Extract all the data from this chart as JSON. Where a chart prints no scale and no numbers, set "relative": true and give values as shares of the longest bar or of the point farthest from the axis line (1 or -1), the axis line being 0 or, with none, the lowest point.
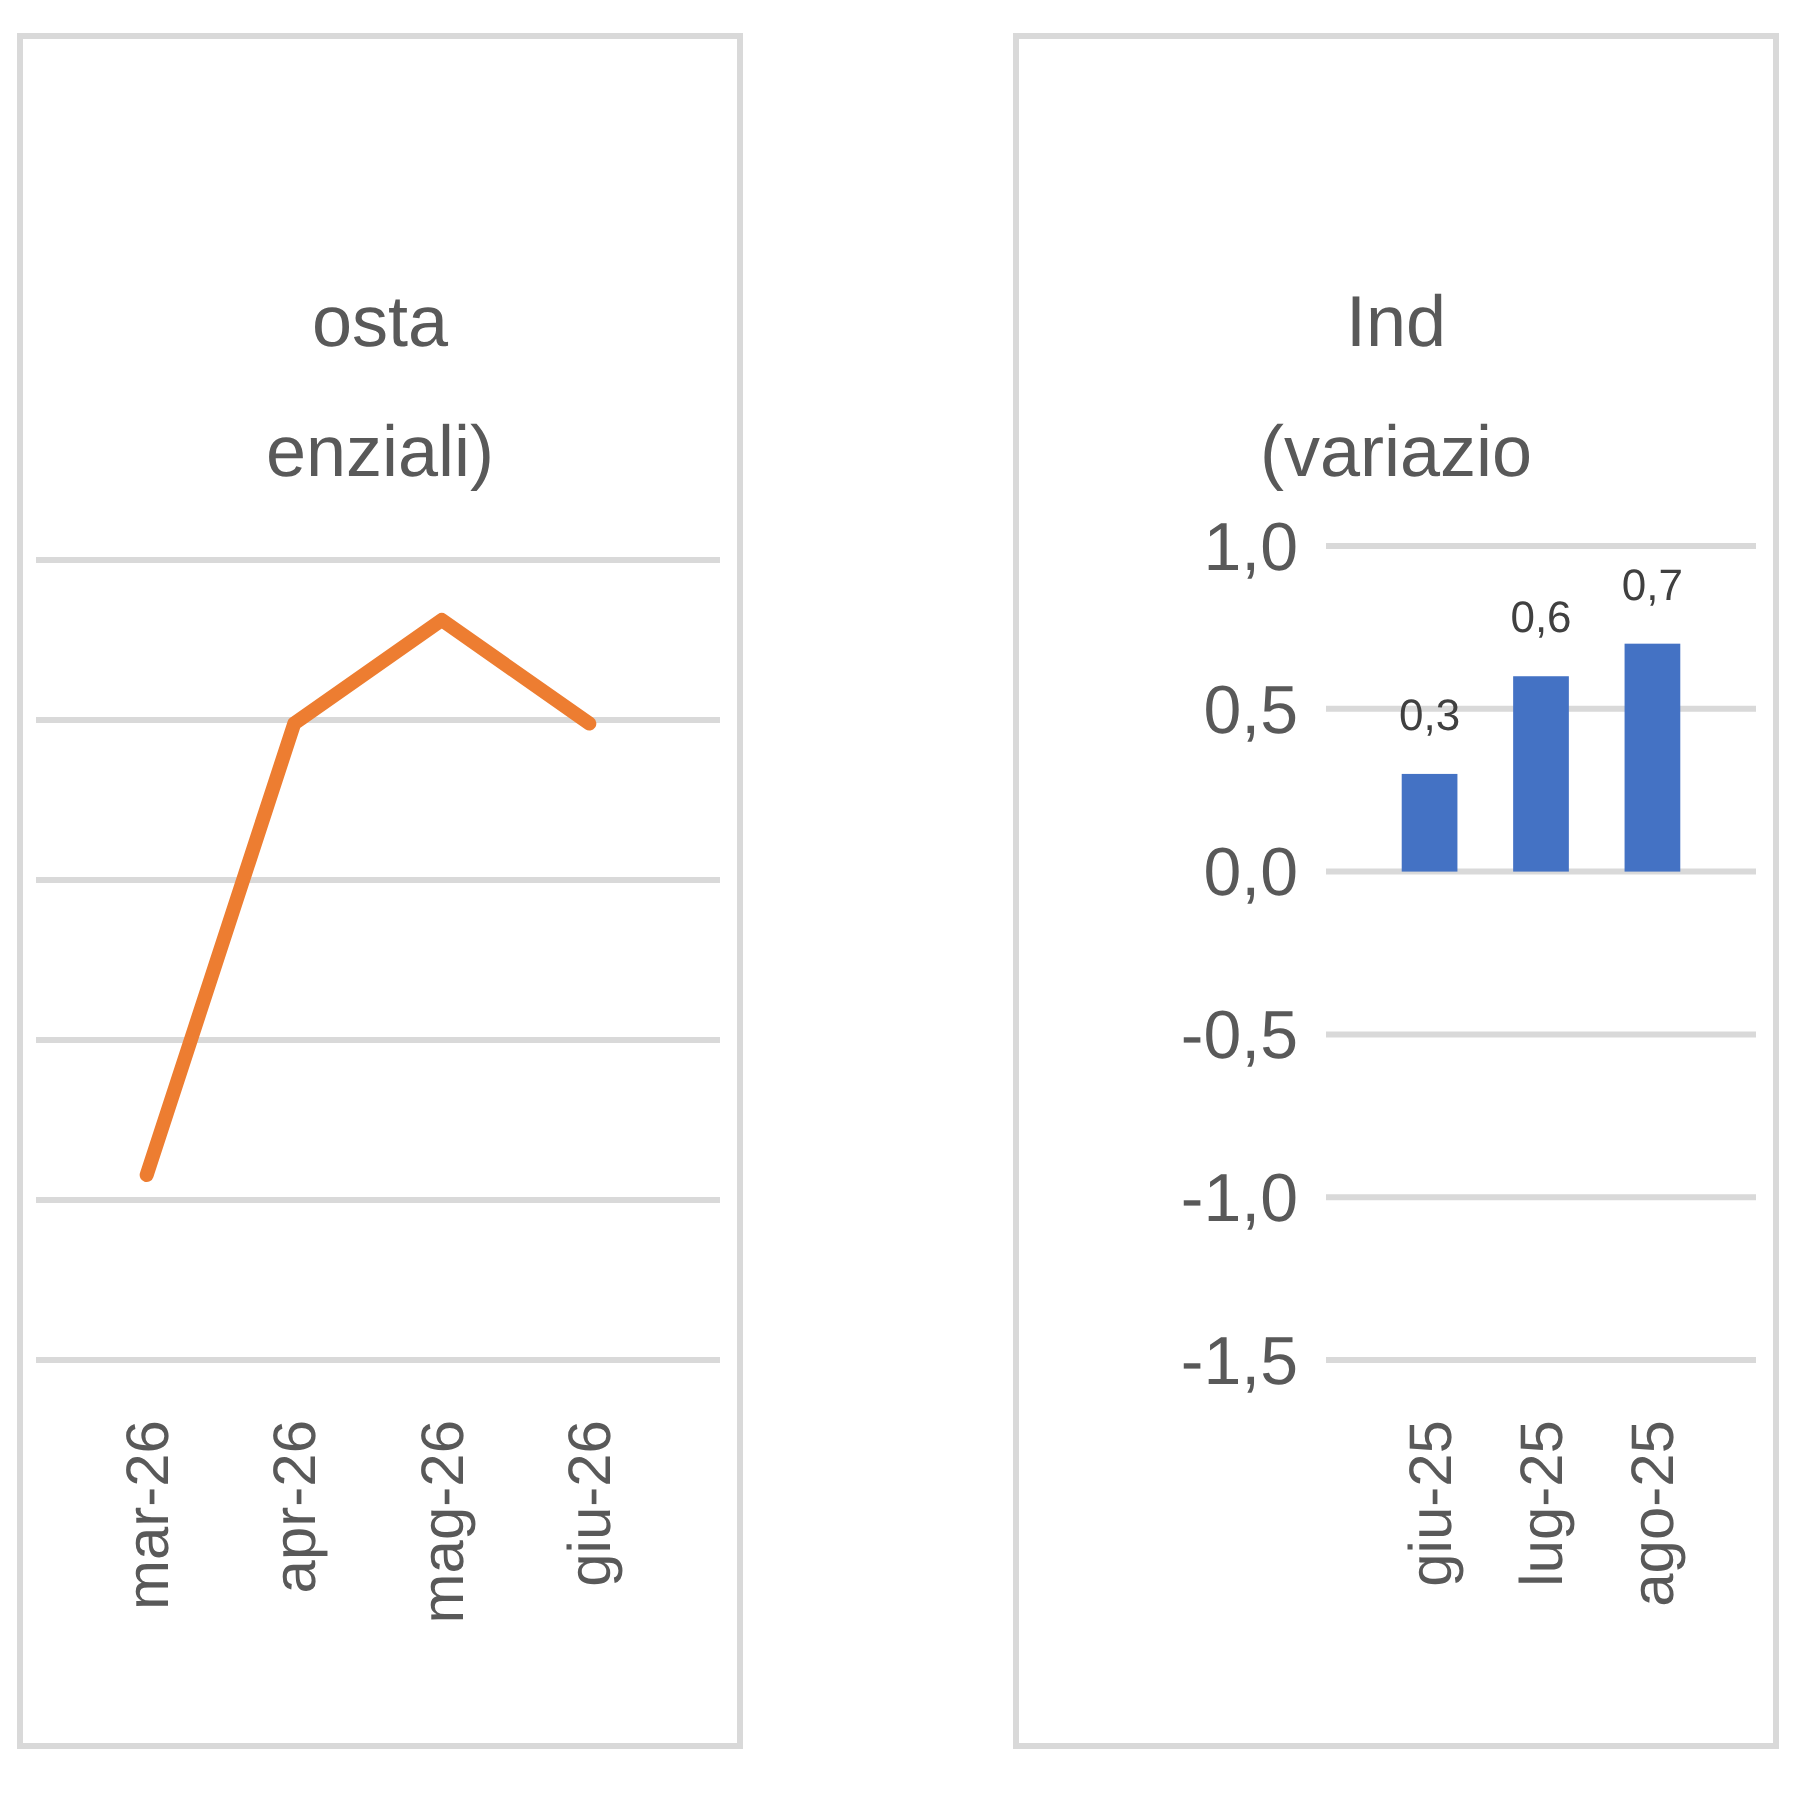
{
  "chart_data": [
    {
      "type": "line",
      "title": "osta",
      "subtitle": "enziali)",
      "categories": [
        "mar-26",
        "apr-26",
        "mag-26",
        "giu-26"
      ],
      "relative": true,
      "grid": true,
      "series": [
        {
          "color": "#ed7d31",
          "values": [
            0.25,
            0.86,
            1,
            0.86
          ]
        }
      ]
    },
    {
      "type": "bar",
      "title": "Ind",
      "subtitle": "(variazio",
      "categories": [
        "giu-25",
        "lug-25",
        "ago-25"
      ],
      "ylim": [
        -1.5,
        1.0
      ],
      "yticks": [
        {
          "value": 1.0,
          "label": "1,0"
        },
        {
          "value": 0.5,
          "label": "0,5"
        },
        {
          "value": 0,
          "label": "0,0"
        },
        {
          "value": -0.5,
          "label": "-0,5"
        },
        {
          "value": -1.0,
          "label": "-1,0"
        },
        {
          "value": -1.5,
          "label": "-1,5"
        }
      ],
      "grid": true,
      "series": [
        {
          "color": "#4472c4",
          "values": [
            0.3,
            0.6,
            0.7
          ],
          "value_labels": [
            "0,3",
            "0,6",
            "0,7"
          ]
        }
      ]
    }
  ]
}
